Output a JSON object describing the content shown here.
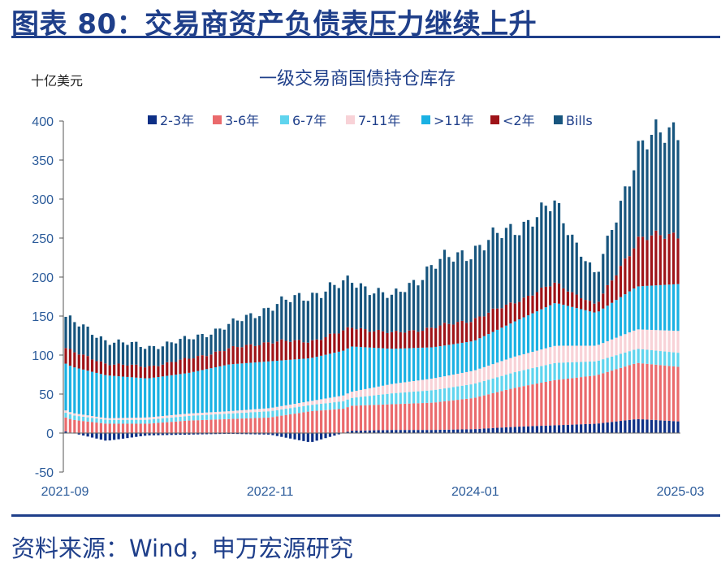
{
  "header": {
    "title": "图表 80：交易商资产负债表压力继续上升"
  },
  "footer": {
    "source": "资料来源：Wind，申万宏源研究"
  },
  "chart_data": {
    "type": "bar",
    "stacked": true,
    "title": "一级交易商国债持仓库存",
    "unit_label": "十亿美元",
    "xlabel": "",
    "ylabel": "十亿美元",
    "ylim": [
      -50,
      400
    ],
    "yticks": [
      -50,
      0,
      50,
      100,
      150,
      200,
      250,
      300,
      350,
      400
    ],
    "x_tick_labels": [
      "2021-09",
      "2022-11",
      "2024-01",
      "2025-03"
    ],
    "legend_position": "top",
    "grid": false,
    "series_colors": {
      "2-3年": "#0d2f86",
      "3-6年": "#ea6a6c",
      "6-7年": "#5fd4ee",
      "7-11年": "#f8d2d7",
      ">11年": "#1ab1e3",
      "<2年": "#9e1318",
      "Bills": "#17557e"
    },
    "anchor_months": [
      "2021-09",
      "2021-12",
      "2022-03",
      "2022-06",
      "2022-09",
      "2022-11",
      "2023-02",
      "2023-05",
      "2023-08",
      "2023-11",
      "2024-01",
      "2024-04",
      "2024-07",
      "2024-10",
      "2025-01",
      "2025-03"
    ],
    "series": [
      {
        "name": "2-3年",
        "values": [
          2,
          -10,
          -3,
          -2,
          -1,
          -2,
          -12,
          3,
          4,
          4,
          5,
          8,
          10,
          12,
          18,
          15
        ]
      },
      {
        "name": "3-6年",
        "values": [
          18,
          12,
          12,
          16,
          18,
          20,
          28,
          32,
          33,
          35,
          40,
          50,
          58,
          62,
          72,
          70
        ]
      },
      {
        "name": "6-7年",
        "values": [
          6,
          5,
          5,
          6,
          7,
          8,
          8,
          10,
          14,
          16,
          18,
          20,
          22,
          18,
          18,
          18
        ]
      },
      {
        "name": "7-11年",
        "values": [
          3,
          2,
          3,
          3,
          3,
          4,
          5,
          8,
          12,
          15,
          17,
          20,
          22,
          20,
          25,
          28
        ]
      },
      {
        "name": ">11年",
        "values": [
          60,
          55,
          50,
          52,
          60,
          60,
          55,
          58,
          45,
          40,
          38,
          45,
          55,
          42,
          55,
          60
        ]
      },
      {
        "name": "<2年",
        "values": [
          20,
          15,
          15,
          18,
          20,
          25,
          22,
          25,
          20,
          25,
          28,
          25,
          25,
          10,
          60,
          65
        ]
      },
      {
        "name": "Bills",
        "values": [
          40,
          30,
          25,
          25,
          30,
          45,
          60,
          60,
          45,
          80,
          90,
          95,
          100,
          35,
          115,
          140
        ]
      }
    ]
  }
}
